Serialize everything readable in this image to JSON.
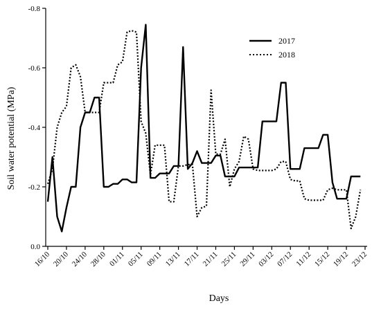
{
  "chart_data": {
    "type": "line",
    "title": "",
    "xlabel": "Days",
    "ylabel": "Soil water potential (MPa)",
    "ylim": [
      0.0,
      -0.8
    ],
    "yticks": [
      {
        "value": 0.0,
        "label": "0.0"
      },
      {
        "value": -0.2,
        "label": "-0.2"
      },
      {
        "value": -0.4,
        "label": "-0.4"
      },
      {
        "value": -0.6,
        "label": "-0.6"
      },
      {
        "value": -0.8,
        "label": "-0.8"
      }
    ],
    "xrange": [
      0,
      68
    ],
    "xticks": [
      {
        "day": 0,
        "label": "16/10"
      },
      {
        "day": 4,
        "label": "20/10"
      },
      {
        "day": 8,
        "label": "24/10"
      },
      {
        "day": 12,
        "label": "28/10"
      },
      {
        "day": 16,
        "label": "01/11"
      },
      {
        "day": 20,
        "label": "05/11"
      },
      {
        "day": 24,
        "label": "09/11"
      },
      {
        "day": 28,
        "label": "13/11"
      },
      {
        "day": 32,
        "label": "17/11"
      },
      {
        "day": 36,
        "label": "21/11"
      },
      {
        "day": 40,
        "label": "25/11"
      },
      {
        "day": 44,
        "label": "29/11"
      },
      {
        "day": 48,
        "label": "03/12"
      },
      {
        "day": 52,
        "label": "07/12"
      },
      {
        "day": 56,
        "label": "11/12"
      },
      {
        "day": 60,
        "label": "15/12"
      },
      {
        "day": 64,
        "label": "19/12"
      },
      {
        "day": 68,
        "label": "23/12"
      }
    ],
    "legend_position": "top-right",
    "series": [
      {
        "name": "2017",
        "style": "solid",
        "color": "#000000",
        "x": [
          0,
          1,
          2,
          3,
          4,
          5,
          6,
          7,
          8,
          9,
          10,
          11,
          12,
          13,
          14,
          15,
          16,
          17,
          18,
          19,
          20,
          21,
          22,
          23,
          24,
          25,
          26,
          27,
          28,
          29,
          30,
          31,
          32,
          33,
          34,
          35,
          36,
          37,
          38,
          39,
          40,
          41,
          42,
          43,
          44,
          45,
          46,
          47,
          48,
          49,
          50,
          51,
          52,
          53,
          54,
          55,
          56,
          57,
          58,
          59,
          60,
          61,
          62,
          63,
          64,
          65,
          66,
          67
        ],
        "y": [
          -0.15,
          -0.3,
          -0.1,
          -0.05,
          -0.13,
          -0.2,
          -0.2,
          -0.4,
          -0.45,
          -0.45,
          -0.5,
          -0.5,
          -0.2,
          -0.2,
          -0.21,
          -0.21,
          -0.225,
          -0.225,
          -0.215,
          -0.215,
          -0.6,
          -0.745,
          -0.23,
          -0.23,
          -0.245,
          -0.245,
          -0.245,
          -0.27,
          -0.27,
          -0.67,
          -0.26,
          -0.28,
          -0.32,
          -0.28,
          -0.28,
          -0.28,
          -0.305,
          -0.305,
          -0.235,
          -0.235,
          -0.235,
          -0.265,
          -0.265,
          -0.265,
          -0.265,
          -0.265,
          -0.42,
          -0.42,
          -0.42,
          -0.42,
          -0.55,
          -0.55,
          -0.26,
          -0.26,
          -0.26,
          -0.33,
          -0.33,
          -0.33,
          -0.33,
          -0.375,
          -0.375,
          -0.215,
          -0.16,
          -0.16,
          -0.16,
          -0.235,
          -0.235,
          -0.235
        ]
      },
      {
        "name": "2018",
        "style": "dotted",
        "color": "#000000",
        "x": [
          0,
          1,
          2,
          3,
          4,
          5,
          6,
          7,
          8,
          9,
          10,
          11,
          12,
          13,
          14,
          15,
          16,
          17,
          18,
          19,
          20,
          21,
          22,
          23,
          24,
          25,
          26,
          27,
          28,
          29,
          30,
          31,
          32,
          33,
          34,
          35,
          36,
          37,
          38,
          39,
          40,
          41,
          42,
          43,
          44,
          45,
          46,
          47,
          48,
          49,
          50,
          51,
          52,
          53,
          54,
          55,
          56,
          57,
          58,
          59,
          60,
          61,
          62,
          63,
          64,
          65,
          66,
          67
        ],
        "y": [
          -0.21,
          -0.26,
          -0.4,
          -0.45,
          -0.47,
          -0.6,
          -0.61,
          -0.57,
          -0.45,
          -0.45,
          -0.45,
          -0.45,
          -0.55,
          -0.55,
          -0.55,
          -0.61,
          -0.62,
          -0.72,
          -0.725,
          -0.72,
          -0.42,
          -0.38,
          -0.24,
          -0.34,
          -0.34,
          -0.34,
          -0.15,
          -0.15,
          -0.27,
          -0.27,
          -0.275,
          -0.275,
          -0.1,
          -0.13,
          -0.135,
          -0.525,
          -0.31,
          -0.31,
          -0.36,
          -0.2,
          -0.26,
          -0.285,
          -0.37,
          -0.36,
          -0.26,
          -0.255,
          -0.255,
          -0.255,
          -0.255,
          -0.26,
          -0.285,
          -0.285,
          -0.225,
          -0.22,
          -0.22,
          -0.16,
          -0.155,
          -0.155,
          -0.155,
          -0.155,
          -0.19,
          -0.195,
          -0.19,
          -0.19,
          -0.19,
          -0.06,
          -0.1,
          -0.19
        ]
      }
    ]
  }
}
